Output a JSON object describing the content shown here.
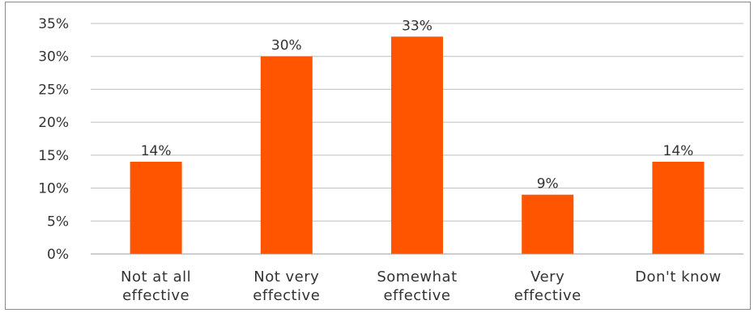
{
  "chart_data": {
    "type": "bar",
    "categories": [
      [
        "Not at all",
        "effective"
      ],
      [
        "Not very",
        "effective"
      ],
      [
        "Somewhat",
        "effective"
      ],
      [
        "Very",
        "effective"
      ],
      [
        "Don't know"
      ]
    ],
    "values": [
      14,
      30,
      33,
      9,
      14
    ],
    "data_labels": [
      "14%",
      "30%",
      "33%",
      "9%",
      "14%"
    ],
    "y_ticks": [
      "0%",
      "5%",
      "10%",
      "15%",
      "20%",
      "25%",
      "30%",
      "35%"
    ],
    "ylim": [
      0,
      35
    ],
    "y_step": 5,
    "grid": true,
    "legend": "none",
    "title": "",
    "xlabel": "",
    "ylabel": "",
    "colors": {
      "bar": "#ff5500",
      "grid": "#bdbdbd",
      "text": "#333333"
    }
  }
}
